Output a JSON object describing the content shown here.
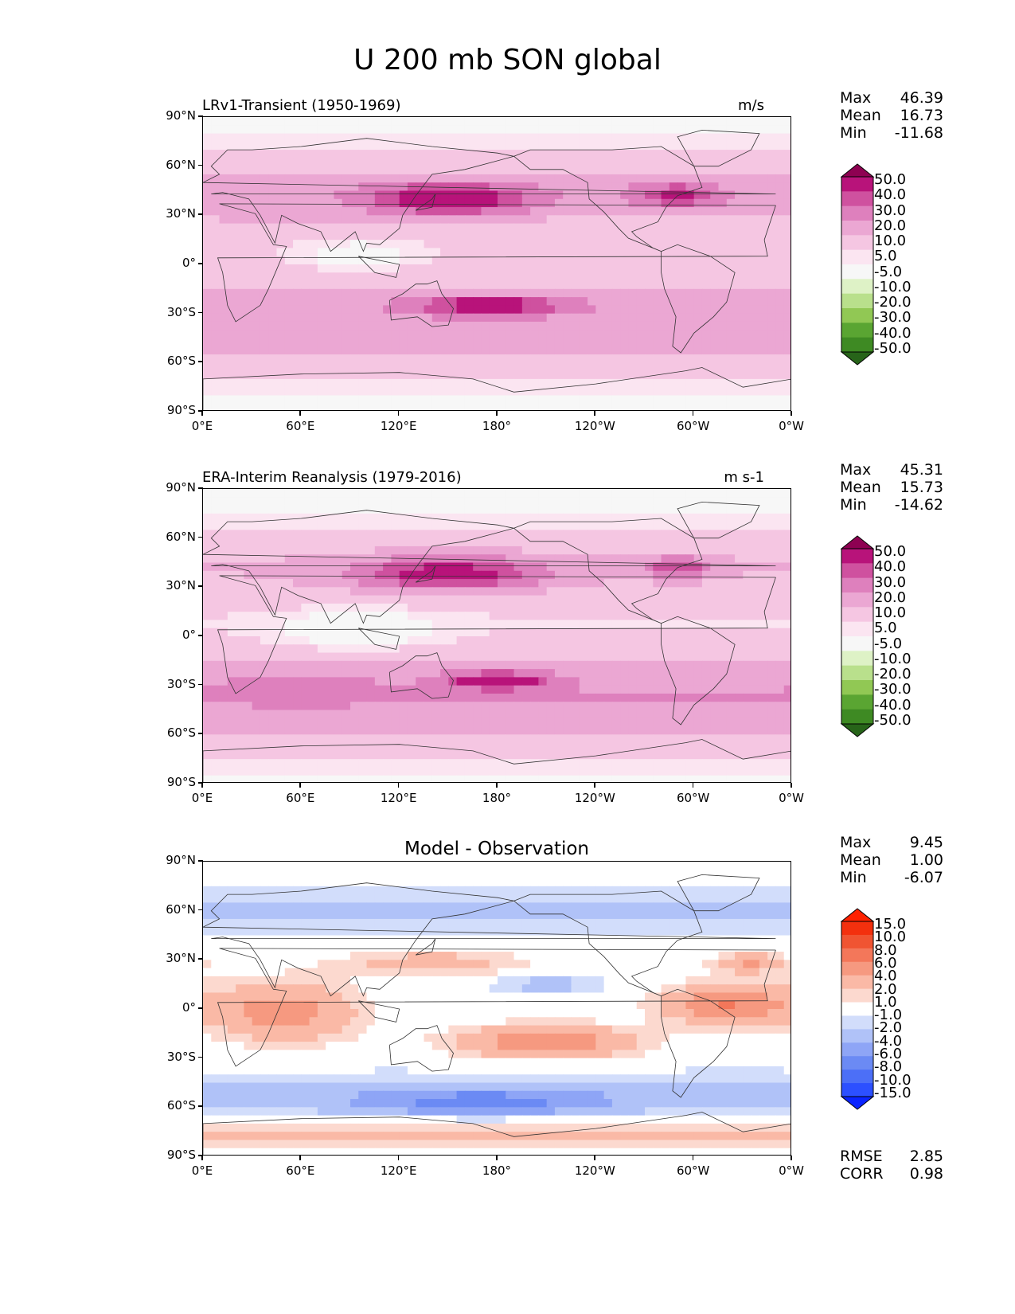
{
  "figure": {
    "title": "U 200 mb SON global",
    "y_ticks": [
      "90°N",
      "60°N",
      "30°N",
      "0°",
      "30°S",
      "60°S",
      "90°S"
    ],
    "x_ticks": [
      "0°E",
      "60°E",
      "120°E",
      "180°",
      "120°W",
      "60°W",
      "0°W"
    ]
  },
  "colors": {
    "field_scale": [
      "#276419",
      "#3e8a23",
      "#5aa532",
      "#91c854",
      "#b9e08c",
      "#def2c6",
      "#f7f7f7",
      "#fbe5f1",
      "#f5c6e2",
      "#eba7d3",
      "#de80bd",
      "#cf519f",
      "#b8137a",
      "#8e0152"
    ],
    "diff_scale": [
      "#0a24ff",
      "#2c50ff",
      "#4c6ff7",
      "#6b8af4",
      "#8ea5f6",
      "#b0c2f8",
      "#d2ddfb",
      "#ffffff",
      "#fcd9cf",
      "#fab9a6",
      "#f69980",
      "#f3775a",
      "#f05432",
      "#f3300e",
      "#ff2200"
    ]
  },
  "chart_data": [
    {
      "type": "heatmap",
      "title": "LRv1-Transient (1950-1969)",
      "units": "m/s",
      "stats": [
        {
          "label": "Max",
          "value": "46.39"
        },
        {
          "label": "Mean",
          "value": "16.73"
        },
        {
          "label": "Min",
          "value": "-11.68"
        }
      ],
      "colorbar_levels": [
        "50.0",
        "40.0",
        "30.0",
        "20.0",
        "10.0",
        "5.0",
        "-5.0",
        "-10.0",
        "-20.0",
        "-30.0",
        "-40.0",
        "-50.0"
      ],
      "xlim": [
        0,
        360
      ],
      "ylim": [
        -90,
        90
      ],
      "features": [
        {
          "type": "band",
          "lat": 44,
          "width": 30,
          "value": 22
        },
        {
          "type": "band",
          "lat": -35,
          "width": 35,
          "value": 28
        },
        {
          "type": "blob",
          "lon": 150,
          "lat": 40,
          "rlon": 55,
          "rlat": 10,
          "value": 40
        },
        {
          "type": "blob",
          "lon": 290,
          "lat": 42,
          "rlon": 30,
          "rlat": 8,
          "value": 30
        },
        {
          "type": "blob",
          "lon": 175,
          "lat": -25,
          "rlon": 45,
          "rlat": 5,
          "value": 38
        },
        {
          "type": "blob",
          "lon": 95,
          "lat": 5,
          "rlon": 35,
          "rlat": 10,
          "value": -12
        },
        {
          "type": "blob",
          "lon": 40,
          "lat": 30,
          "rlon": 30,
          "rlat": 6,
          "value": 8
        }
      ]
    },
    {
      "type": "heatmap",
      "title": "ERA-Interim Reanalysis (1979-2016)",
      "units": "m s-1",
      "stats": [
        {
          "label": "Max",
          "value": "45.31"
        },
        {
          "label": "Mean",
          "value": "15.73"
        },
        {
          "label": "Min",
          "value": "-14.62"
        }
      ],
      "colorbar_levels": [
        "50.0",
        "40.0",
        "30.0",
        "20.0",
        "10.0",
        "5.0",
        "-5.0",
        "-10.0",
        "-20.0",
        "-30.0",
        "-40.0",
        "-50.0"
      ],
      "xlim": [
        0,
        360
      ],
      "ylim": [
        -90,
        90
      ],
      "features": [
        {
          "type": "band",
          "lat": 42,
          "width": 28,
          "value": 20
        },
        {
          "type": "band",
          "lat": -38,
          "width": 35,
          "value": 30
        },
        {
          "type": "blob",
          "lon": 150,
          "lat": 38,
          "rlon": 55,
          "rlat": 10,
          "value": 40
        },
        {
          "type": "blob",
          "lon": 290,
          "lat": 42,
          "rlon": 20,
          "rlat": 6,
          "value": 30
        },
        {
          "type": "blob",
          "lon": 180,
          "lat": -27,
          "rlon": 30,
          "rlat": 5,
          "value": 40
        },
        {
          "type": "blob",
          "lon": 95,
          "lat": 3,
          "rlon": 45,
          "rlat": 12,
          "value": -15
        },
        {
          "type": "blob",
          "lon": 60,
          "lat": -30,
          "rlon": 40,
          "rlat": 8,
          "value": 10
        }
      ]
    },
    {
      "type": "heatmap",
      "title": "Model - Observation",
      "units": "",
      "stats": [
        {
          "label": "Max",
          "value": "9.45"
        },
        {
          "label": "Mean",
          "value": "1.00"
        },
        {
          "label": "Min",
          "value": "-6.07"
        }
      ],
      "colorbar_levels": [
        "15.0",
        "10.0",
        "8.0",
        "6.0",
        "4.0",
        "2.0",
        "1.0",
        "-1.0",
        "-2.0",
        "-4.0",
        "-6.0",
        "-8.0",
        "-10.0",
        "-15.0"
      ],
      "metrics": [
        {
          "label": "RMSE",
          "value": "2.85"
        },
        {
          "label": "CORR",
          "value": "0.98"
        }
      ],
      "xlim": [
        0,
        360
      ],
      "ylim": [
        -90,
        90
      ],
      "features": [
        {
          "type": "band",
          "lat": -52,
          "width": 14,
          "value": -3
        },
        {
          "type": "band",
          "lat": 60,
          "width": 15,
          "value": -2.5
        },
        {
          "type": "band",
          "lat": -75,
          "width": 8,
          "value": 2.5
        },
        {
          "type": "blob",
          "lon": 50,
          "lat": -2,
          "rlon": 45,
          "rlat": 18,
          "value": 5
        },
        {
          "type": "blob",
          "lon": 210,
          "lat": -20,
          "rlon": 55,
          "rlat": 10,
          "value": 6
        },
        {
          "type": "blob",
          "lon": 320,
          "lat": 3,
          "rlon": 40,
          "rlat": 12,
          "value": 6
        },
        {
          "type": "blob",
          "lon": 335,
          "lat": 28,
          "rlon": 25,
          "rlat": 6,
          "value": 4
        },
        {
          "type": "blob",
          "lon": 170,
          "lat": -58,
          "rlon": 70,
          "rlat": 8,
          "value": -5
        },
        {
          "type": "blob",
          "lon": 140,
          "lat": 28,
          "rlon": 60,
          "rlat": 8,
          "value": 3
        },
        {
          "type": "blob",
          "lon": 210,
          "lat": 15,
          "rlon": 40,
          "rlat": 5,
          "value": -3
        }
      ]
    }
  ]
}
